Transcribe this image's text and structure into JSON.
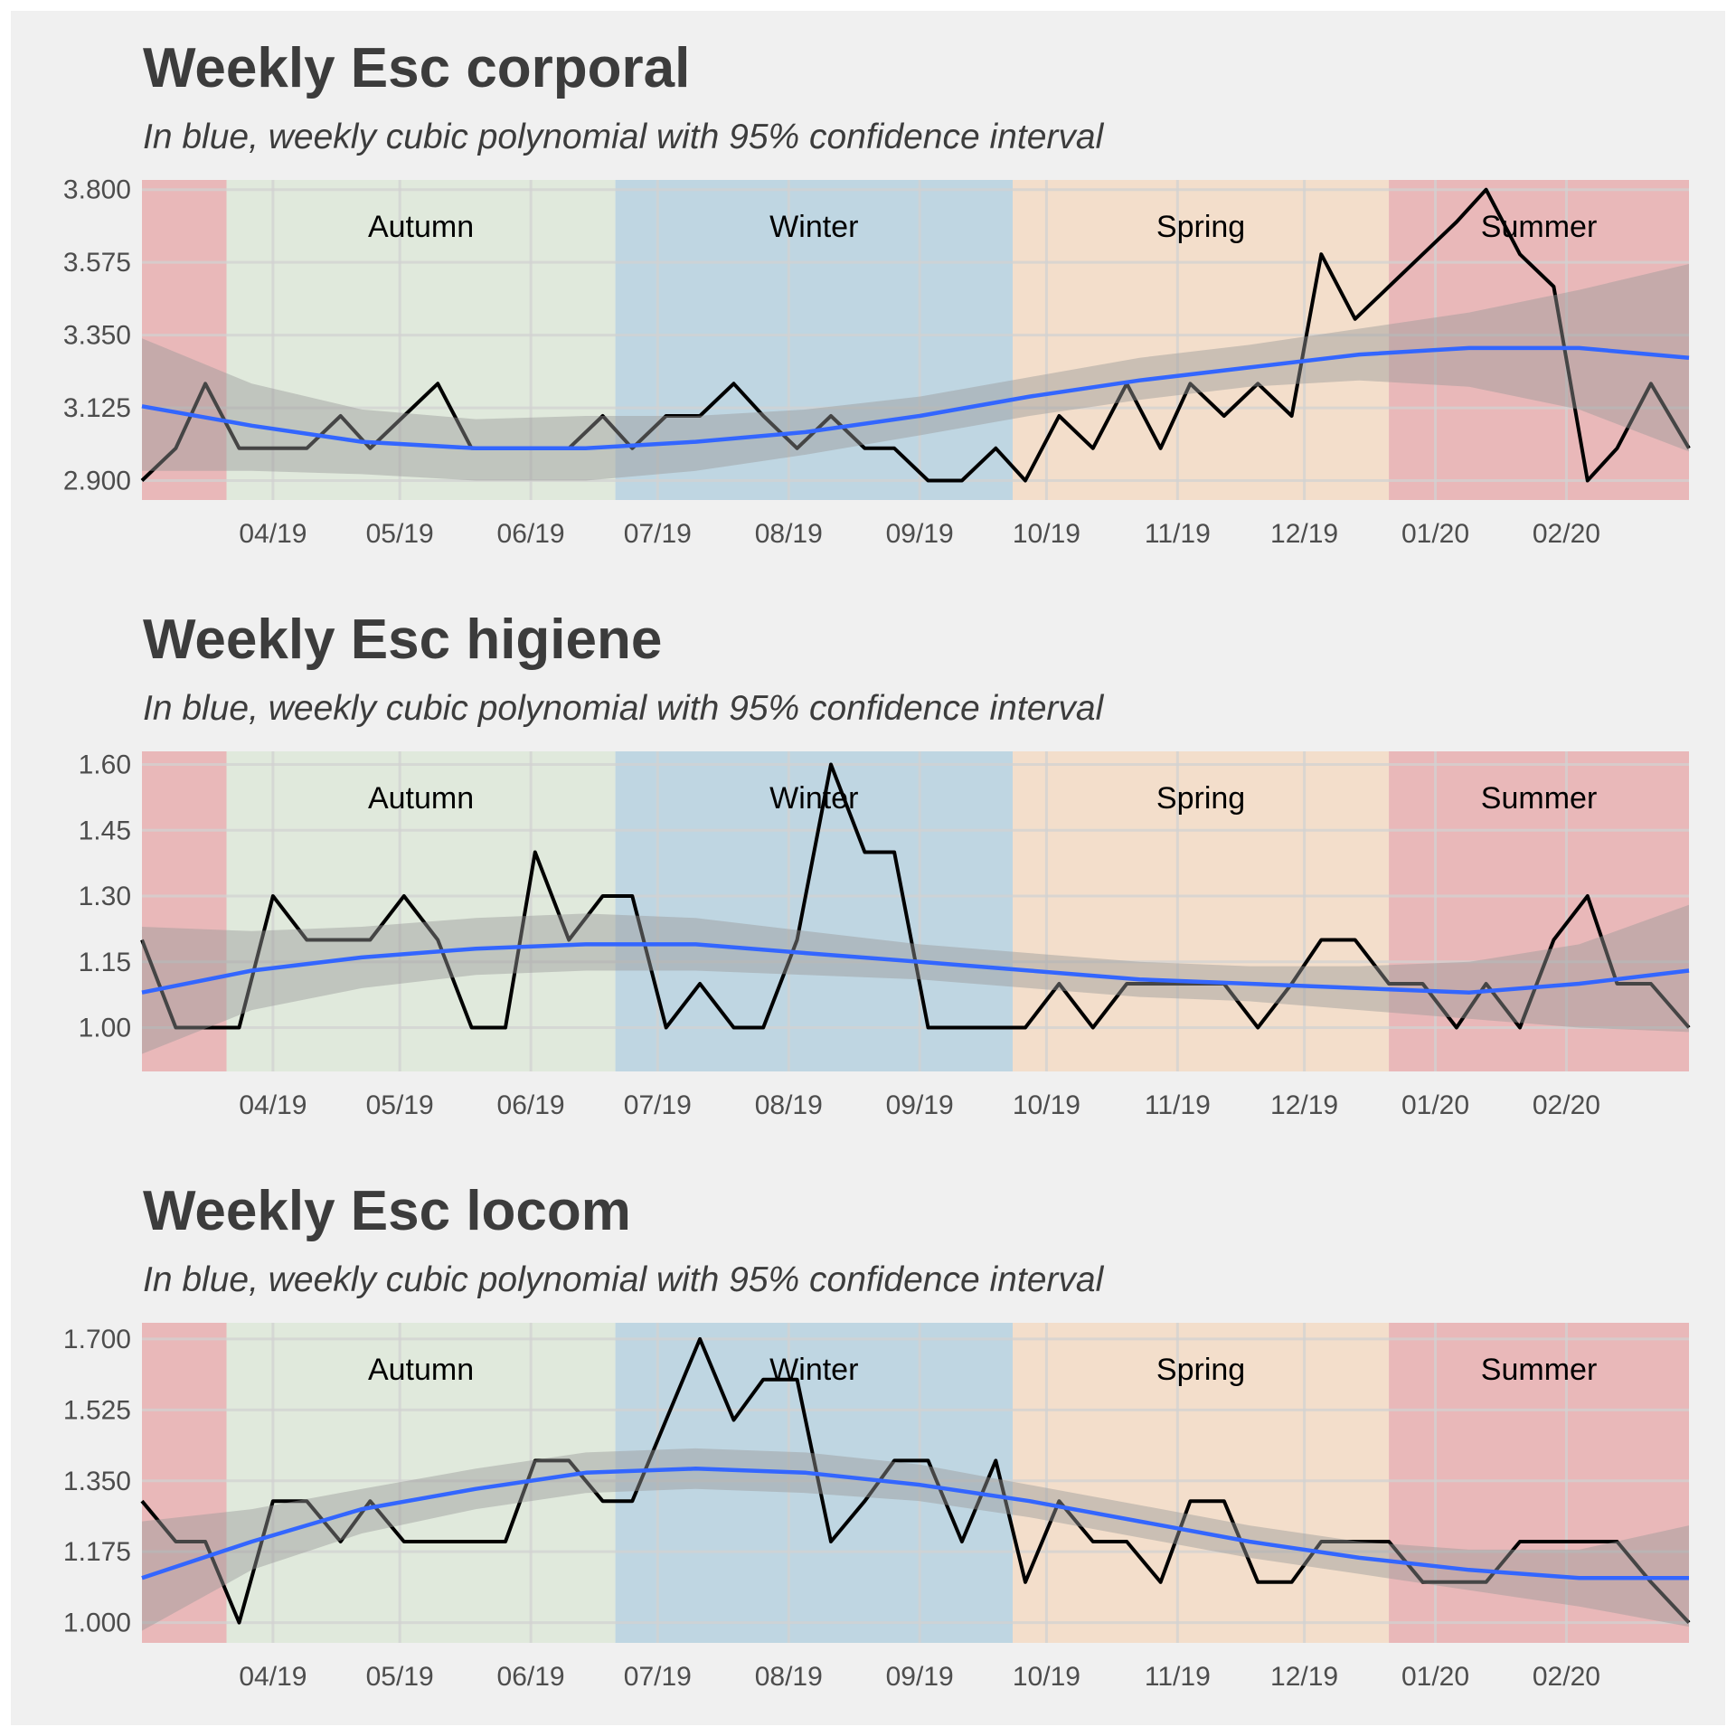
{
  "figure": {
    "subtitle": "In blue, weekly cubic polynomial with 95% confidence interval"
  },
  "colors": {
    "background": "#f0f0f0",
    "grid": "#d2d2d2",
    "series_line": "#000000",
    "fit_line": "#3366ff",
    "confidence_band": "#999999",
    "season_autumn": "#e0e9dc",
    "season_winter": "#bfd6e2",
    "season_spring": "#f3decb",
    "season_summer": "#e9b8b9"
  },
  "seasons": [
    {
      "label": "Summer",
      "start": "2019-03-01",
      "end": "2019-03-21",
      "color": "#e9b8b9",
      "show_label": false
    },
    {
      "label": "Autumn",
      "start": "2019-03-21",
      "end": "2019-06-21",
      "color": "#e0e9dc",
      "show_label": true
    },
    {
      "label": "Winter",
      "start": "2019-06-21",
      "end": "2019-09-23",
      "color": "#bfd6e2",
      "show_label": true
    },
    {
      "label": "Spring",
      "start": "2019-09-23",
      "end": "2019-12-21",
      "color": "#f3decb",
      "show_label": true
    },
    {
      "label": "Summer",
      "start": "2019-12-21",
      "end": "2020-03-01",
      "color": "#e9b8b9",
      "show_label": true
    }
  ],
  "x_axis": {
    "range": [
      "2019-03-01",
      "2020-03-01"
    ],
    "ticks": [
      {
        "date": "2019-04-01",
        "label": "04/19"
      },
      {
        "date": "2019-05-01",
        "label": "05/19"
      },
      {
        "date": "2019-06-01",
        "label": "06/19"
      },
      {
        "date": "2019-07-01",
        "label": "07/19"
      },
      {
        "date": "2019-08-01",
        "label": "08/19"
      },
      {
        "date": "2019-09-01",
        "label": "09/19"
      },
      {
        "date": "2019-10-01",
        "label": "10/19"
      },
      {
        "date": "2019-11-01",
        "label": "11/19"
      },
      {
        "date": "2019-12-01",
        "label": "12/19"
      },
      {
        "date": "2020-01-01",
        "label": "01/20"
      },
      {
        "date": "2020-02-01",
        "label": "02/20"
      }
    ]
  },
  "chart_data": [
    {
      "type": "line",
      "title": "Weekly Esc corporal",
      "subtitle": "In blue, weekly cubic polynomial with 95% confidence interval",
      "ylim": [
        2.84,
        3.83
      ],
      "y_ticks": [
        2.9,
        3.125,
        3.35,
        3.575,
        3.8
      ],
      "y_tick_labels": [
        "2.900",
        "3.125",
        "3.350",
        "3.575",
        "3.800"
      ],
      "dates": [
        "2019-03-01",
        "2019-03-09",
        "2019-03-16",
        "2019-03-24",
        "2019-04-01",
        "2019-04-09",
        "2019-04-17",
        "2019-04-24",
        "2019-05-02",
        "2019-05-10",
        "2019-05-18",
        "2019-05-26",
        "2019-06-02",
        "2019-06-10",
        "2019-06-18",
        "2019-06-25",
        "2019-07-03",
        "2019-07-11",
        "2019-07-19",
        "2019-07-26",
        "2019-08-03",
        "2019-08-11",
        "2019-08-19",
        "2019-08-26",
        "2019-09-03",
        "2019-09-11",
        "2019-09-19",
        "2019-09-26",
        "2019-10-04",
        "2019-10-12",
        "2019-10-20",
        "2019-10-28",
        "2019-11-04",
        "2019-11-12",
        "2019-11-20",
        "2019-11-28",
        "2019-12-05",
        "2019-12-13",
        "2019-12-21",
        "2019-12-29",
        "2020-01-06",
        "2020-01-13",
        "2020-01-21",
        "2020-01-29",
        "2020-02-06",
        "2020-02-13",
        "2020-02-21",
        "2020-03-01"
      ],
      "values": [
        2.9,
        3.0,
        3.2,
        3.0,
        3.0,
        3.0,
        3.1,
        3.0,
        3.1,
        3.2,
        3.0,
        3.0,
        3.0,
        3.0,
        3.1,
        3.0,
        3.1,
        3.1,
        3.2,
        3.1,
        3.0,
        3.1,
        3.0,
        3.0,
        2.9,
        2.9,
        3.0,
        2.9,
        3.1,
        3.0,
        3.2,
        3.0,
        3.2,
        3.1,
        3.2,
        3.1,
        3.6,
        3.4,
        3.5,
        3.6,
        3.7,
        3.8,
        3.6,
        3.5,
        2.9,
        3.0,
        3.2,
        3.0
      ],
      "fit": {
        "dates": [
          "2019-03-01",
          "2019-03-27",
          "2019-04-22",
          "2019-05-19",
          "2019-06-14",
          "2019-07-10",
          "2019-08-05",
          "2019-09-01",
          "2019-09-27",
          "2019-10-23",
          "2019-11-18",
          "2019-12-14",
          "2020-01-09",
          "2020-02-04",
          "2020-03-01"
        ],
        "values": [
          3.13,
          3.07,
          3.02,
          3.0,
          3.0,
          3.02,
          3.05,
          3.1,
          3.16,
          3.21,
          3.25,
          3.29,
          3.31,
          3.31,
          3.28
        ],
        "lower": [
          2.93,
          2.93,
          2.92,
          2.9,
          2.9,
          2.93,
          2.98,
          3.04,
          3.1,
          3.15,
          3.19,
          3.21,
          3.19,
          3.12,
          2.99
        ],
        "upper": [
          3.34,
          3.2,
          3.12,
          3.09,
          3.1,
          3.1,
          3.12,
          3.16,
          3.22,
          3.28,
          3.32,
          3.37,
          3.42,
          3.49,
          3.57
        ]
      }
    },
    {
      "type": "line",
      "title": "Weekly Esc higiene",
      "subtitle": "In blue, weekly cubic polynomial with 95% confidence interval",
      "ylim": [
        0.9,
        1.63
      ],
      "y_ticks": [
        1.0,
        1.15,
        1.3,
        1.45,
        1.6
      ],
      "y_tick_labels": [
        "1.00",
        "1.15",
        "1.30",
        "1.45",
        "1.60"
      ],
      "dates": [
        "2019-03-01",
        "2019-03-09",
        "2019-03-16",
        "2019-03-24",
        "2019-04-01",
        "2019-04-09",
        "2019-04-17",
        "2019-04-24",
        "2019-05-02",
        "2019-05-10",
        "2019-05-18",
        "2019-05-26",
        "2019-06-02",
        "2019-06-10",
        "2019-06-18",
        "2019-06-25",
        "2019-07-03",
        "2019-07-11",
        "2019-07-19",
        "2019-07-26",
        "2019-08-03",
        "2019-08-11",
        "2019-08-19",
        "2019-08-26",
        "2019-09-03",
        "2019-09-11",
        "2019-09-19",
        "2019-09-26",
        "2019-10-04",
        "2019-10-12",
        "2019-10-20",
        "2019-10-28",
        "2019-11-04",
        "2019-11-12",
        "2019-11-20",
        "2019-11-28",
        "2019-12-05",
        "2019-12-13",
        "2019-12-21",
        "2019-12-29",
        "2020-01-06",
        "2020-01-13",
        "2020-01-21",
        "2020-01-29",
        "2020-02-06",
        "2020-02-13",
        "2020-02-21",
        "2020-03-01"
      ],
      "values": [
        1.2,
        1.0,
        1.0,
        1.0,
        1.3,
        1.2,
        1.2,
        1.2,
        1.3,
        1.2,
        1.0,
        1.0,
        1.4,
        1.2,
        1.3,
        1.3,
        1.0,
        1.1,
        1.0,
        1.0,
        1.2,
        1.6,
        1.4,
        1.4,
        1.0,
        1.0,
        1.0,
        1.0,
        1.1,
        1.0,
        1.1,
        1.1,
        1.1,
        1.1,
        1.0,
        1.1,
        1.2,
        1.2,
        1.1,
        1.1,
        1.0,
        1.1,
        1.0,
        1.2,
        1.3,
        1.1,
        1.1,
        1.0
      ],
      "fit": {
        "dates": [
          "2019-03-01",
          "2019-03-27",
          "2019-04-22",
          "2019-05-19",
          "2019-06-14",
          "2019-07-10",
          "2019-08-05",
          "2019-09-01",
          "2019-09-27",
          "2019-10-23",
          "2019-11-18",
          "2019-12-14",
          "2020-01-09",
          "2020-02-04",
          "2020-03-01"
        ],
        "values": [
          1.08,
          1.13,
          1.16,
          1.18,
          1.19,
          1.19,
          1.17,
          1.15,
          1.13,
          1.11,
          1.1,
          1.09,
          1.08,
          1.1,
          1.13
        ],
        "lower": [
          0.94,
          1.04,
          1.09,
          1.12,
          1.13,
          1.13,
          1.12,
          1.11,
          1.09,
          1.07,
          1.06,
          1.04,
          1.02,
          1.0,
          0.99
        ],
        "upper": [
          1.23,
          1.22,
          1.23,
          1.25,
          1.26,
          1.25,
          1.22,
          1.19,
          1.17,
          1.15,
          1.14,
          1.14,
          1.15,
          1.19,
          1.28
        ]
      }
    },
    {
      "type": "line",
      "title": "Weekly Esc locom",
      "subtitle": "In blue, weekly cubic polynomial with 95% confidence interval",
      "ylim": [
        0.95,
        1.74
      ],
      "y_ticks": [
        1.0,
        1.175,
        1.35,
        1.525,
        1.7
      ],
      "y_tick_labels": [
        "1.000",
        "1.175",
        "1.350",
        "1.525",
        "1.700"
      ],
      "dates": [
        "2019-03-01",
        "2019-03-09",
        "2019-03-16",
        "2019-03-24",
        "2019-04-01",
        "2019-04-09",
        "2019-04-17",
        "2019-04-24",
        "2019-05-02",
        "2019-05-10",
        "2019-05-18",
        "2019-05-26",
        "2019-06-02",
        "2019-06-10",
        "2019-06-18",
        "2019-06-25",
        "2019-07-03",
        "2019-07-11",
        "2019-07-19",
        "2019-07-26",
        "2019-08-03",
        "2019-08-11",
        "2019-08-19",
        "2019-08-26",
        "2019-09-03",
        "2019-09-11",
        "2019-09-19",
        "2019-09-26",
        "2019-10-04",
        "2019-10-12",
        "2019-10-20",
        "2019-10-28",
        "2019-11-04",
        "2019-11-12",
        "2019-11-20",
        "2019-11-28",
        "2019-12-05",
        "2019-12-13",
        "2019-12-21",
        "2019-12-29",
        "2020-01-06",
        "2020-01-13",
        "2020-01-21",
        "2020-01-29",
        "2020-02-06",
        "2020-02-13",
        "2020-02-21",
        "2020-03-01"
      ],
      "values": [
        1.3,
        1.2,
        1.2,
        1.0,
        1.3,
        1.3,
        1.2,
        1.3,
        1.2,
        1.2,
        1.2,
        1.2,
        1.4,
        1.4,
        1.3,
        1.3,
        1.5,
        1.7,
        1.5,
        1.6,
        1.6,
        1.2,
        1.3,
        1.4,
        1.4,
        1.2,
        1.4,
        1.1,
        1.3,
        1.2,
        1.2,
        1.1,
        1.3,
        1.3,
        1.1,
        1.1,
        1.2,
        1.2,
        1.2,
        1.1,
        1.1,
        1.1,
        1.2,
        1.2,
        1.2,
        1.2,
        1.1,
        1.0
      ],
      "fit": {
        "dates": [
          "2019-03-01",
          "2019-03-27",
          "2019-04-22",
          "2019-05-19",
          "2019-06-14",
          "2019-07-10",
          "2019-08-05",
          "2019-09-01",
          "2019-09-27",
          "2019-10-23",
          "2019-11-18",
          "2019-12-14",
          "2020-01-09",
          "2020-02-04",
          "2020-03-01"
        ],
        "values": [
          1.11,
          1.2,
          1.28,
          1.33,
          1.37,
          1.38,
          1.37,
          1.34,
          1.3,
          1.25,
          1.2,
          1.16,
          1.13,
          1.11,
          1.11
        ],
        "lower": [
          0.98,
          1.13,
          1.22,
          1.28,
          1.32,
          1.33,
          1.32,
          1.3,
          1.26,
          1.21,
          1.16,
          1.12,
          1.08,
          1.04,
          0.99
        ],
        "upper": [
          1.25,
          1.28,
          1.33,
          1.38,
          1.42,
          1.43,
          1.42,
          1.39,
          1.34,
          1.29,
          1.24,
          1.2,
          1.18,
          1.18,
          1.24
        ]
      }
    }
  ]
}
